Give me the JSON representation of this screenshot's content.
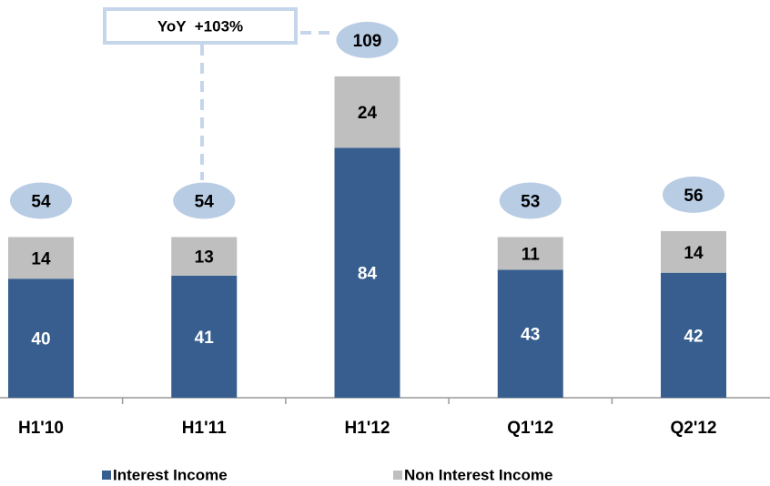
{
  "chart_data": {
    "type": "stacked_bar",
    "annotation": "YoY  +103%",
    "categories": [
      "H1'10",
      "H1'11",
      "H1'12",
      "Q1'12",
      "Q2'12"
    ],
    "series": [
      {
        "name": "Interest Income",
        "color": "#375e8f",
        "values": [
          40,
          41,
          84,
          43,
          42
        ]
      },
      {
        "name": "Non Interest Income",
        "color": "#bfbfbf",
        "values": [
          14,
          13,
          24,
          11,
          14
        ]
      }
    ],
    "totals": [
      54,
      54,
      109,
      53,
      56
    ],
    "total_color": "#b8cce4",
    "ylim": [
      0,
      130
    ]
  }
}
